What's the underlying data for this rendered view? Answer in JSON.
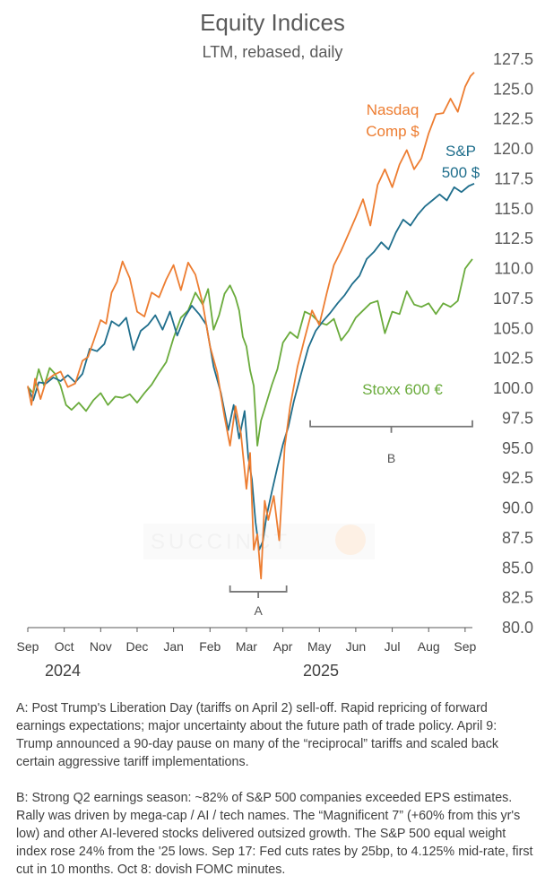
{
  "header": {
    "title": "Equity Indices",
    "subtitle": "LTM, rebased, daily"
  },
  "years": {
    "first": "2024",
    "second": "2025"
  },
  "watermark": "SUCCINCT",
  "notes": {
    "a": "A: Post Trump's Liberation Day (tariffs on April 2) sell-off. Rapid repricing of forward earnings expectations; major uncertainty about the future path of trade policy. April 9: Trump announced a 90-day pause on many of the “reciprocal” tariffs and scaled back certain aggressive tariff implementations.",
    "b": "B: Strong Q2 earnings season: ~82% of S&P 500 companies exceeded EPS estimates. Rally was driven by mega-cap / AI / tech names. The “Magnificent 7” (+60% from this yr's low) and other AI-levered stocks delivered outsized growth. The S&P 500 equal weight index rose 24% from the '25 lows. Sep 17: Fed cuts rates by 25bp, to 4.125% mid-rate, first cut in 10 months. Oct 8: dovish FOMC minutes."
  },
  "colors": {
    "nasdaq": "#ed7d31",
    "sp500": "#1f6e8c",
    "stoxx": "#6aab3c",
    "axis": "#595959",
    "bracket": "#777777"
  },
  "chart_data": {
    "type": "line",
    "title": "Equity Indices",
    "subtitle": "LTM, rebased, daily",
    "xlabel": "",
    "ylabel": "",
    "ylim": [
      80.0,
      127.5
    ],
    "xlim": [
      0,
      12.2
    ],
    "x_ticks": [
      0,
      1,
      2,
      3,
      4,
      5,
      6,
      7,
      8,
      9,
      10,
      11,
      12
    ],
    "x_tick_labels": [
      "Sep",
      "Oct",
      "Nov",
      "Dec",
      "Jan",
      "Feb",
      "Mar",
      "Apr",
      "May",
      "Jun",
      "Jul",
      "Aug",
      "Sep"
    ],
    "y_ticks": [
      80.0,
      82.5,
      85.0,
      87.5,
      90.0,
      92.5,
      95.0,
      97.5,
      100.0,
      102.5,
      105.0,
      107.5,
      110.0,
      112.5,
      115.0,
      117.5,
      120.0,
      122.5,
      125.0,
      127.5
    ],
    "y_tick_labels": [
      "80.0",
      "82.5",
      "85.0",
      "87.5",
      "90.0",
      "92.5",
      "95.0",
      "97.5",
      "100.0",
      "102.5",
      "105.0",
      "107.5",
      "110.0",
      "112.5",
      "115.0",
      "117.5",
      "120.0",
      "122.5",
      "125.0",
      "127.5"
    ],
    "grid": false,
    "series": [
      {
        "key": "nasdaq",
        "name": "Nasdaq Comp $",
        "label_lines": [
          "Nasdaq",
          "Comp $"
        ],
        "x": [
          0,
          0.1,
          0.2,
          0.35,
          0.5,
          0.7,
          0.9,
          1.1,
          1.3,
          1.5,
          1.65,
          1.8,
          2.0,
          2.15,
          2.3,
          2.45,
          2.6,
          2.8,
          3.0,
          3.2,
          3.4,
          3.6,
          3.8,
          4.0,
          4.2,
          4.4,
          4.6,
          4.8,
          5.0,
          5.2,
          5.4,
          5.55,
          5.7,
          5.85,
          6.0,
          6.1,
          6.2,
          6.3,
          6.4,
          6.5,
          6.6,
          6.75,
          6.9,
          7.05,
          7.2,
          7.4,
          7.6,
          7.8,
          8.0,
          8.2,
          8.4,
          8.6,
          8.8,
          9.0,
          9.2,
          9.4,
          9.6,
          9.8,
          10.0,
          10.2,
          10.4,
          10.6,
          10.8,
          11.0,
          11.2,
          11.4,
          11.6,
          11.8,
          12.0,
          12.15,
          12.25
        ],
        "values": [
          100.2,
          98.6,
          100.8,
          99.1,
          100.6,
          101.1,
          101.4,
          100.1,
          100.4,
          102.3,
          102.6,
          103.9,
          105.7,
          105.4,
          108.0,
          108.9,
          110.6,
          109.2,
          106.4,
          106.0,
          108.0,
          107.6,
          109.1,
          110.3,
          108.2,
          110.5,
          109.5,
          107.1,
          103.5,
          101.3,
          97.6,
          95.2,
          98.5,
          96.2,
          91.6,
          94.6,
          86.5,
          87.8,
          84.1,
          90.6,
          89.0,
          91.0,
          87.3,
          95.1,
          98.5,
          101.8,
          104.2,
          106.5,
          105.3,
          107.9,
          110.3,
          111.5,
          112.9,
          114.3,
          115.8,
          113.6,
          117.0,
          118.3,
          116.8,
          118.7,
          119.9,
          118.3,
          119.2,
          121.3,
          122.9,
          123.0,
          124.2,
          123.1,
          125.2,
          126.1,
          126.4
        ]
      },
      {
        "key": "sp500",
        "name": "S&P 500 $",
        "label_lines": [
          "S&P",
          "500 $"
        ],
        "x": [
          0,
          0.15,
          0.3,
          0.5,
          0.7,
          0.9,
          1.1,
          1.3,
          1.5,
          1.7,
          1.9,
          2.1,
          2.3,
          2.5,
          2.7,
          2.9,
          3.1,
          3.3,
          3.5,
          3.7,
          3.9,
          4.1,
          4.3,
          4.5,
          4.7,
          4.9,
          5.1,
          5.3,
          5.5,
          5.65,
          5.8,
          5.95,
          6.05,
          6.15,
          6.25,
          6.35,
          6.45,
          6.55,
          6.7,
          6.85,
          7.0,
          7.15,
          7.3,
          7.5,
          7.7,
          7.9,
          8.1,
          8.3,
          8.5,
          8.7,
          8.9,
          9.1,
          9.3,
          9.5,
          9.7,
          9.9,
          10.1,
          10.3,
          10.5,
          10.7,
          10.9,
          11.1,
          11.3,
          11.5,
          11.7,
          11.9,
          12.1,
          12.25
        ],
        "values": [
          100.1,
          99.0,
          100.5,
          100.4,
          100.9,
          100.6,
          101.1,
          100.5,
          101.2,
          103.3,
          103.1,
          103.7,
          105.6,
          105.2,
          105.9,
          103.2,
          104.8,
          105.3,
          106.1,
          104.9,
          106.4,
          104.4,
          105.9,
          106.9,
          106.2,
          105.3,
          101.8,
          99.6,
          96.5,
          98.6,
          95.8,
          98.1,
          94.2,
          92.4,
          88.8,
          86.5,
          87.2,
          89.3,
          91.4,
          93.4,
          95.3,
          96.8,
          98.9,
          101.2,
          103.4,
          104.8,
          105.6,
          106.3,
          107.1,
          107.8,
          108.7,
          109.4,
          110.8,
          111.4,
          112.2,
          111.6,
          113.0,
          114.1,
          113.6,
          114.5,
          115.2,
          115.7,
          116.2,
          115.7,
          116.8,
          116.4,
          116.9,
          117.1
        ]
      },
      {
        "key": "stoxx",
        "name": "Stoxx 600 €",
        "label_lines": [
          "Stoxx 600 €"
        ],
        "x": [
          0,
          0.15,
          0.3,
          0.45,
          0.6,
          0.75,
          0.9,
          1.05,
          1.2,
          1.4,
          1.6,
          1.8,
          2.0,
          2.2,
          2.4,
          2.6,
          2.8,
          3.0,
          3.2,
          3.4,
          3.6,
          3.8,
          4.0,
          4.2,
          4.4,
          4.6,
          4.8,
          4.95,
          5.1,
          5.25,
          5.4,
          5.55,
          5.7,
          5.8,
          5.9,
          6.0,
          6.1,
          6.2,
          6.3,
          6.4,
          6.55,
          6.7,
          6.85,
          7.0,
          7.2,
          7.4,
          7.6,
          7.8,
          8.0,
          8.2,
          8.4,
          8.6,
          8.8,
          9.0,
          9.2,
          9.4,
          9.6,
          9.8,
          10.0,
          10.2,
          10.4,
          10.6,
          10.8,
          11.0,
          11.2,
          11.4,
          11.6,
          11.8,
          12.0,
          12.1,
          12.2
        ],
        "values": [
          100.1,
          99.6,
          101.6,
          100.2,
          101.7,
          101.2,
          100.2,
          98.6,
          98.2,
          98.8,
          98.1,
          99.0,
          99.6,
          98.6,
          99.3,
          99.2,
          99.5,
          98.8,
          99.6,
          100.3,
          101.3,
          102.2,
          104.2,
          105.9,
          106.5,
          108.0,
          107.0,
          108.3,
          104.9,
          106.1,
          107.9,
          108.6,
          107.6,
          106.5,
          104.3,
          103.5,
          101.5,
          100.2,
          95.2,
          97.3,
          98.8,
          100.3,
          101.6,
          103.8,
          104.7,
          104.2,
          106.4,
          106.1,
          105.5,
          105.3,
          105.8,
          104.0,
          104.8,
          105.9,
          106.5,
          107.1,
          107.3,
          104.6,
          106.4,
          106.2,
          108.1,
          107.0,
          106.8,
          107.1,
          106.2,
          107.1,
          106.8,
          107.3,
          110.0,
          110.4,
          110.8
        ]
      }
    ],
    "annotations": [
      {
        "label": "A",
        "x_start": 5.55,
        "x_end": 7.1,
        "y": 83.0
      },
      {
        "label": "B",
        "x_start": 7.75,
        "x_end": 12.2,
        "y": 96.8
      }
    ]
  }
}
